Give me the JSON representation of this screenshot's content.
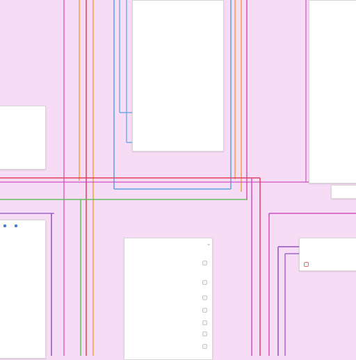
{
  "colors": {
    "background": "#f7dcf5",
    "wire_blue": "#5aa0e6",
    "wire_orange": "#f0a040",
    "wire_red": "#e04060",
    "wire_green": "#60c060",
    "wire_purple": "#9050c0",
    "wire_magenta": "#d050c0"
  },
  "cards": {
    "top_center": {
      "title": "",
      "rows": [
        "",
        "",
        "",
        "",
        "",
        "",
        "",
        "",
        "",
        "",
        "",
        "",
        "",
        "",
        "",
        "",
        "",
        "",
        "",
        ""
      ]
    },
    "top_right": {
      "rows": [
        "",
        "",
        "",
        "",
        "",
        "",
        "",
        "",
        "",
        "",
        "",
        "",
        "",
        "",
        ""
      ],
      "title": "",
      "subrows": [
        "",
        ""
      ]
    },
    "left_mid": {
      "title": "",
      "rows": [
        "",
        "",
        "",
        "",
        ""
      ]
    },
    "bottom_left": {
      "rows": [
        "",
        "",
        "",
        "",
        "",
        "",
        "",
        "",
        "",
        "",
        "",
        ""
      ]
    },
    "bottom_center": {
      "title": "",
      "rows": [
        "",
        "",
        "",
        "",
        "",
        "",
        "",
        "",
        "",
        "",
        ""
      ]
    },
    "bottom_right": {
      "title": "",
      "rows": [
        "",
        ""
      ]
    },
    "right_note": {
      "rows": [
        "",
        ""
      ]
    }
  }
}
